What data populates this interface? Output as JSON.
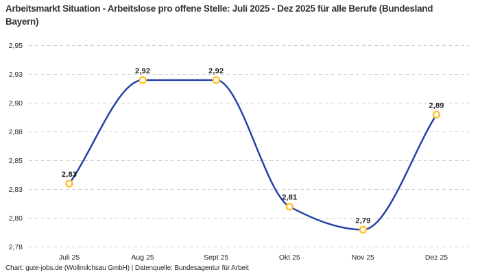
{
  "title": "Arbeitsmarkt Situation - Arbeitslose pro offene Stelle: Juli 2025 - Dez 2025 für alle Berufe (Bundesland Bayern)",
  "footer": "Chart: gute-jobs.de (Wollmilchsau GmbH) | Datenquelle: Bundesagentur für Arbeit",
  "chart_data": {
    "type": "line",
    "title": "Arbeitsmarkt Situation - Arbeitslose pro offene Stelle: Juli 2025 - Dez 2025 für alle Berufe (Bundesland Bayern)",
    "categories": [
      "Juli 25",
      "Aug 25",
      "Sept 25",
      "Okt 25",
      "Nov 25",
      "Dez 25"
    ],
    "values": [
      2.83,
      2.92,
      2.92,
      2.81,
      2.79,
      2.89
    ],
    "value_labels": [
      "2,83",
      "2,92",
      "2,92",
      "2,81",
      "2,79",
      "2,89"
    ],
    "xlabel": "",
    "ylabel": "",
    "ylim": [
      2.775,
      2.95
    ],
    "y_ticks": [
      {
        "value": 2.95,
        "label": "2,95"
      },
      {
        "value": 2.925,
        "label": "2,93"
      },
      {
        "value": 2.9,
        "label": "2,90"
      },
      {
        "value": 2.875,
        "label": "2,88"
      },
      {
        "value": 2.85,
        "label": "2,85"
      },
      {
        "value": 2.825,
        "label": "2,83"
      },
      {
        "value": 2.8,
        "label": "2,80"
      },
      {
        "value": 2.775,
        "label": "2,78"
      }
    ],
    "grid": "horizontal-dashed",
    "legend": "none",
    "curve": "smooth-monotone",
    "colors": {
      "line": "#2342a4",
      "marker_ring": "#ffc233",
      "marker_fill": "#ffffff",
      "gridline": "#cccccc",
      "tick_text": "#262626",
      "point_label_text": "#1a1a1a",
      "background": "#ffffff"
    }
  }
}
